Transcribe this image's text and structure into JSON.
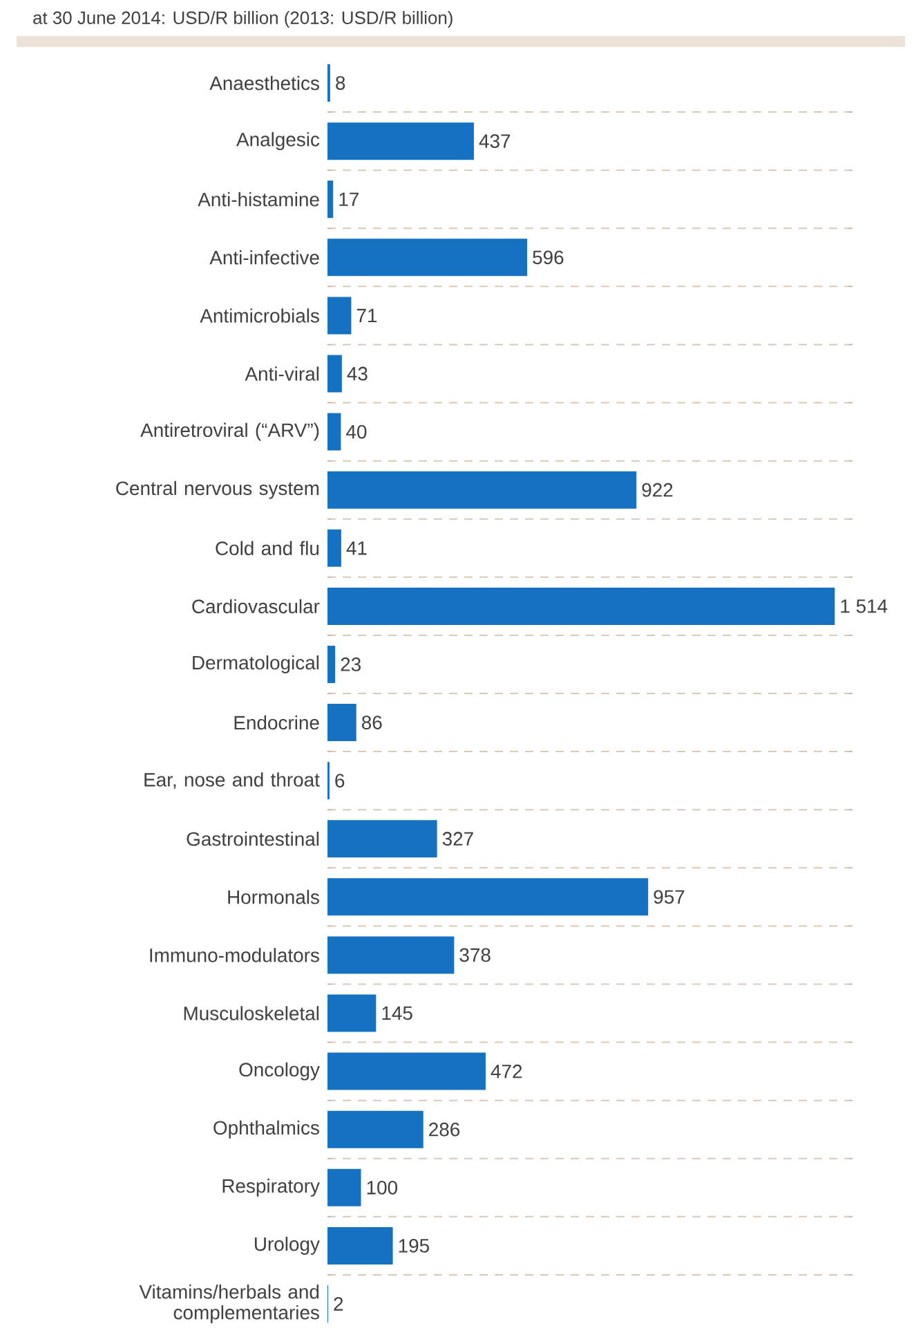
{
  "chart_data": {
    "type": "bar",
    "orientation": "horizontal",
    "title": "at 30 June 2014: USD/R billion (2013: USD/R billion)",
    "categories": [
      "Anaesthetics",
      "Analgesic",
      "Anti-histamine",
      "Anti-infective",
      "Antimicrobials",
      "Anti-viral",
      "Antiretroviral (“ARV”)",
      "Central nervous system",
      "Cold and flu",
      "Cardiovascular",
      "Dermatological",
      "Endocrine",
      "Ear, nose and throat",
      "Gastrointestinal",
      "Hormonals",
      "Immuno-modulators",
      "Musculoskeletal",
      "Oncology",
      "Ophthalmics",
      "Respiratory",
      "Urology",
      "Vitamins/herbals and complementaries"
    ],
    "values": [
      8,
      437,
      17,
      596,
      71,
      43,
      40,
      922,
      41,
      1514,
      23,
      86,
      6,
      327,
      957,
      378,
      145,
      472,
      286,
      100,
      195,
      2
    ],
    "value_labels": [
      "8",
      "437",
      "17",
      "596",
      "71",
      "43",
      "40",
      "922",
      "41",
      "1 514",
      "23",
      "86",
      "6",
      "327",
      "957",
      "378",
      "145",
      "472",
      "286",
      "100",
      "195",
      "2"
    ],
    "color": "#1572c2",
    "grid": "y"
  }
}
